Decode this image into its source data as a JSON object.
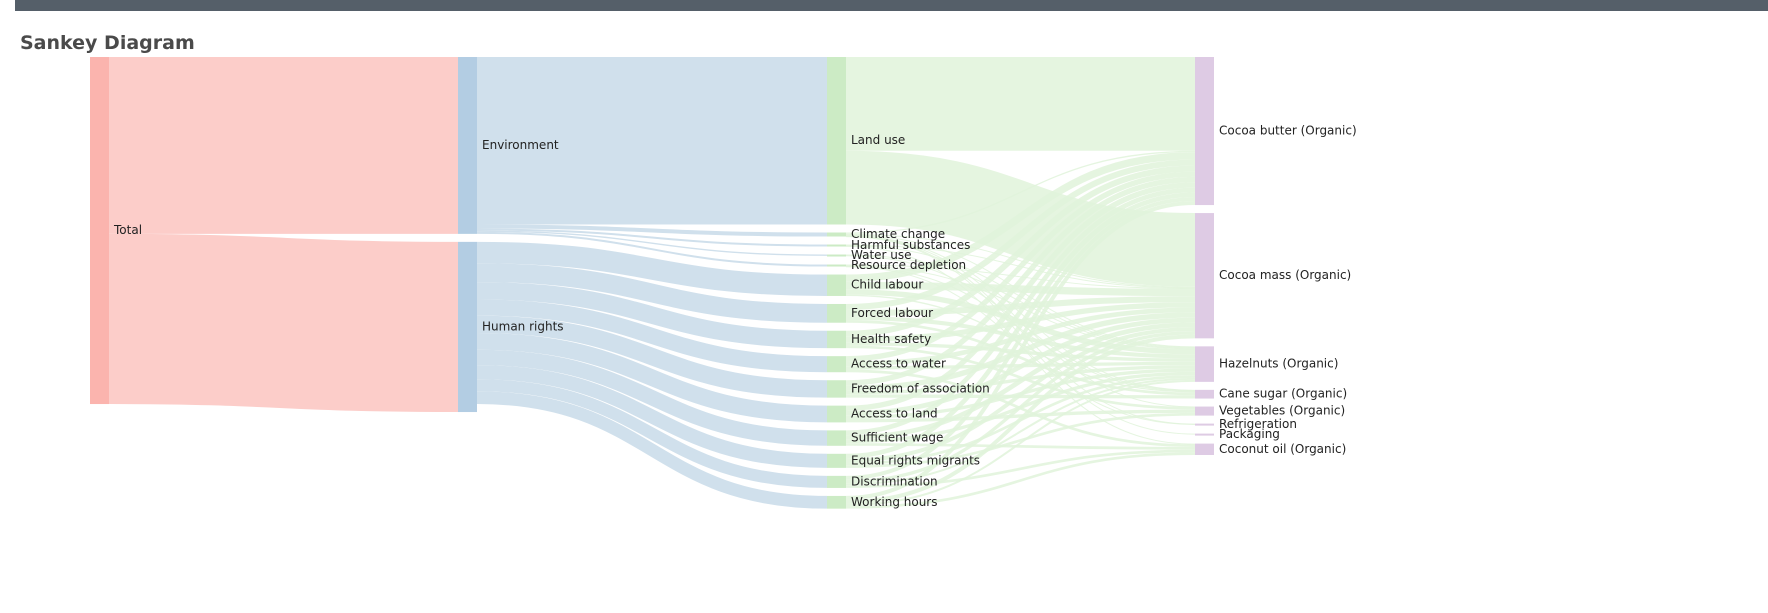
{
  "page": {
    "title": "Sankey Diagram"
  },
  "chart_data": {
    "type": "sankey",
    "title": "Sankey Diagram",
    "columns": [
      [
        "Total"
      ],
      [
        "Environment",
        "Human rights"
      ],
      [
        "Land use",
        "Climate change",
        "Harmful substances",
        "Water use",
        "Resource depletion",
        "Child labour",
        "Forced labour",
        "Health safety",
        "Access to water",
        "Freedom of association",
        "Access to land",
        "Sufficient wage",
        "Equal rights migrants",
        "Discrimination",
        "Working hours"
      ],
      [
        "Cocoa butter (Organic)",
        "Cocoa mass (Organic)",
        "Hazelnuts (Organic)",
        "Cane sugar (Organic)",
        "Vegetables (Organic)",
        "Refrigeration",
        "Packaging",
        "Coconut oil (Organic)"
      ]
    ],
    "colors": {
      "col0": "#fbb4ae",
      "col1": "#b3cde3",
      "col2": "#ccebc5",
      "col3": "#decbe4",
      "link0": "#fccdc9",
      "link1": "#d0e0ec",
      "link2": "#e0f3db"
    },
    "links": [
      {
        "source": "Total",
        "target": "Environment",
        "value": 26.4
      },
      {
        "source": "Total",
        "target": "Human rights",
        "value": 25.4
      },
      {
        "source": "Environment",
        "target": "Land use",
        "value": 25.0
      },
      {
        "source": "Environment",
        "target": "Climate change",
        "value": 0.6
      },
      {
        "source": "Environment",
        "target": "Harmful substances",
        "value": 0.3
      },
      {
        "source": "Environment",
        "target": "Water use",
        "value": 0.2
      },
      {
        "source": "Environment",
        "target": "Resource depletion",
        "value": 0.3
      },
      {
        "source": "Human rights",
        "target": "Child labour",
        "value": 3.2
      },
      {
        "source": "Human rights",
        "target": "Forced labour",
        "value": 2.8
      },
      {
        "source": "Human rights",
        "target": "Health safety",
        "value": 2.6
      },
      {
        "source": "Human rights",
        "target": "Access to water",
        "value": 2.4
      },
      {
        "source": "Human rights",
        "target": "Freedom of association",
        "value": 2.6
      },
      {
        "source": "Human rights",
        "target": "Access to land",
        "value": 2.5
      },
      {
        "source": "Human rights",
        "target": "Sufficient wage",
        "value": 2.3
      },
      {
        "source": "Human rights",
        "target": "Equal rights migrants",
        "value": 2.1
      },
      {
        "source": "Human rights",
        "target": "Discrimination",
        "value": 1.8
      },
      {
        "source": "Human rights",
        "target": "Working hours",
        "value": 1.9
      },
      {
        "source": "Land use",
        "target": "Cocoa butter (Organic)",
        "value": 14.0
      },
      {
        "source": "Land use",
        "target": "Cocoa mass (Organic)",
        "value": 11.0
      },
      {
        "source": "Climate change",
        "target": "Cocoa butter (Organic)",
        "value": 0.2
      },
      {
        "source": "Climate change",
        "target": "Cocoa mass (Organic)",
        "value": 0.1
      },
      {
        "source": "Climate change",
        "target": "Hazelnuts (Organic)",
        "value": 0.1
      },
      {
        "source": "Climate change",
        "target": "Cane sugar (Organic)",
        "value": 0.05
      },
      {
        "source": "Climate change",
        "target": "Vegetables (Organic)",
        "value": 0.05
      },
      {
        "source": "Climate change",
        "target": "Refrigeration",
        "value": 0.05
      },
      {
        "source": "Climate change",
        "target": "Packaging",
        "value": 0.05
      },
      {
        "source": "Harmful substances",
        "target": "Cocoa mass (Organic)",
        "value": 0.1
      },
      {
        "source": "Harmful substances",
        "target": "Hazelnuts (Organic)",
        "value": 0.1
      },
      {
        "source": "Harmful substances",
        "target": "Coconut oil (Organic)",
        "value": 0.1
      },
      {
        "source": "Water use",
        "target": "Hazelnuts (Organic)",
        "value": 0.1
      },
      {
        "source": "Water use",
        "target": "Cane sugar (Organic)",
        "value": 0.1
      },
      {
        "source": "Resource depletion",
        "target": "Cocoa mass (Organic)",
        "value": 0.1
      },
      {
        "source": "Resource depletion",
        "target": "Hazelnuts (Organic)",
        "value": 0.1
      },
      {
        "source": "Resource depletion",
        "target": "Cane sugar (Organic)",
        "value": 0.05
      },
      {
        "source": "Resource depletion",
        "target": "Refrigeration",
        "value": 0.05
      },
      {
        "source": "Child labour",
        "target": "Cocoa butter (Organic)",
        "value": 1.1
      },
      {
        "source": "Child labour",
        "target": "Cocoa mass (Organic)",
        "value": 1.1
      },
      {
        "source": "Child labour",
        "target": "Hazelnuts (Organic)",
        "value": 0.8
      },
      {
        "source": "Child labour",
        "target": "Cane sugar (Organic)",
        "value": 0.2
      },
      {
        "source": "Forced labour",
        "target": "Cocoa butter (Organic)",
        "value": 0.9
      },
      {
        "source": "Forced labour",
        "target": "Cocoa mass (Organic)",
        "value": 0.9
      },
      {
        "source": "Forced labour",
        "target": "Hazelnuts (Organic)",
        "value": 0.6
      },
      {
        "source": "Forced labour",
        "target": "Cane sugar (Organic)",
        "value": 0.4
      },
      {
        "source": "Health safety",
        "target": "Cocoa butter (Organic)",
        "value": 0.9
      },
      {
        "source": "Health safety",
        "target": "Cocoa mass (Organic)",
        "value": 0.8
      },
      {
        "source": "Health safety",
        "target": "Hazelnuts (Organic)",
        "value": 0.5
      },
      {
        "source": "Health safety",
        "target": "Vegetables (Organic)",
        "value": 0.4
      },
      {
        "source": "Access to water",
        "target": "Cocoa butter (Organic)",
        "value": 0.8
      },
      {
        "source": "Access to water",
        "target": "Cocoa mass (Organic)",
        "value": 0.7
      },
      {
        "source": "Access to water",
        "target": "Hazelnuts (Organic)",
        "value": 0.5
      },
      {
        "source": "Access to water",
        "target": "Coconut oil (Organic)",
        "value": 0.4
      },
      {
        "source": "Freedom of association",
        "target": "Cocoa butter (Organic)",
        "value": 0.8
      },
      {
        "source": "Freedom of association",
        "target": "Cocoa mass (Organic)",
        "value": 0.8
      },
      {
        "source": "Freedom of association",
        "target": "Hazelnuts (Organic)",
        "value": 0.5
      },
      {
        "source": "Freedom of association",
        "target": "Cane sugar (Organic)",
        "value": 0.5
      },
      {
        "source": "Access to land",
        "target": "Cocoa butter (Organic)",
        "value": 0.8
      },
      {
        "source": "Access to land",
        "target": "Cocoa mass (Organic)",
        "value": 0.7
      },
      {
        "source": "Access to land",
        "target": "Hazelnuts (Organic)",
        "value": 0.5
      },
      {
        "source": "Access to land",
        "target": "Vegetables (Organic)",
        "value": 0.5
      },
      {
        "source": "Sufficient wage",
        "target": "Cocoa butter (Organic)",
        "value": 0.7
      },
      {
        "source": "Sufficient wage",
        "target": "Cocoa mass (Organic)",
        "value": 0.7
      },
      {
        "source": "Sufficient wage",
        "target": "Hazelnuts (Organic)",
        "value": 0.5
      },
      {
        "source": "Sufficient wage",
        "target": "Coconut oil (Organic)",
        "value": 0.4
      },
      {
        "source": "Equal rights migrants",
        "target": "Cocoa butter (Organic)",
        "value": 0.7
      },
      {
        "source": "Equal rights migrants",
        "target": "Cocoa mass (Organic)",
        "value": 0.6
      },
      {
        "source": "Equal rights migrants",
        "target": "Hazelnuts (Organic)",
        "value": 0.4
      },
      {
        "source": "Equal rights migrants",
        "target": "Vegetables (Organic)",
        "value": 0.4
      },
      {
        "source": "Discrimination",
        "target": "Cocoa butter (Organic)",
        "value": 0.6
      },
      {
        "source": "Discrimination",
        "target": "Cocoa mass (Organic)",
        "value": 0.5
      },
      {
        "source": "Discrimination",
        "target": "Hazelnuts (Organic)",
        "value": 0.3
      },
      {
        "source": "Discrimination",
        "target": "Coconut oil (Organic)",
        "value": 0.4
      },
      {
        "source": "Working hours",
        "target": "Cocoa butter (Organic)",
        "value": 0.6
      },
      {
        "source": "Working hours",
        "target": "Cocoa mass (Organic)",
        "value": 0.6
      },
      {
        "source": "Working hours",
        "target": "Hazelnuts (Organic)",
        "value": 0.3
      },
      {
        "source": "Working hours",
        "target": "Coconut oil (Organic)",
        "value": 0.4
      }
    ]
  }
}
